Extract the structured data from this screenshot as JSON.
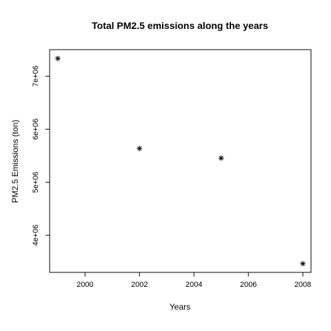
{
  "chart_data": {
    "type": "scatter",
    "title": "Total PM2.5 emissions along the years",
    "xlabel": "Years",
    "ylabel": "PM2.5 Emissions (ton)",
    "xlim": [
      1998.7,
      2008.3
    ],
    "ylim": [
      3300000,
      7500000
    ],
    "xticks": [
      2000,
      2002,
      2004,
      2006,
      2008
    ],
    "xtick_labels": [
      "2000",
      "2002",
      "2004",
      "2006",
      "2008"
    ],
    "yticks": [
      4000000,
      5000000,
      6000000,
      7000000
    ],
    "ytick_labels": [
      "4e+06",
      "5e+06",
      "6e+06",
      "7e+06"
    ],
    "marker": "asterisk",
    "grid": false,
    "legend": "none",
    "series": [
      {
        "x": [
          1999,
          2002,
          2005,
          2008
        ],
        "y": [
          7332967,
          5635780,
          5454703,
          3464206
        ]
      }
    ]
  }
}
